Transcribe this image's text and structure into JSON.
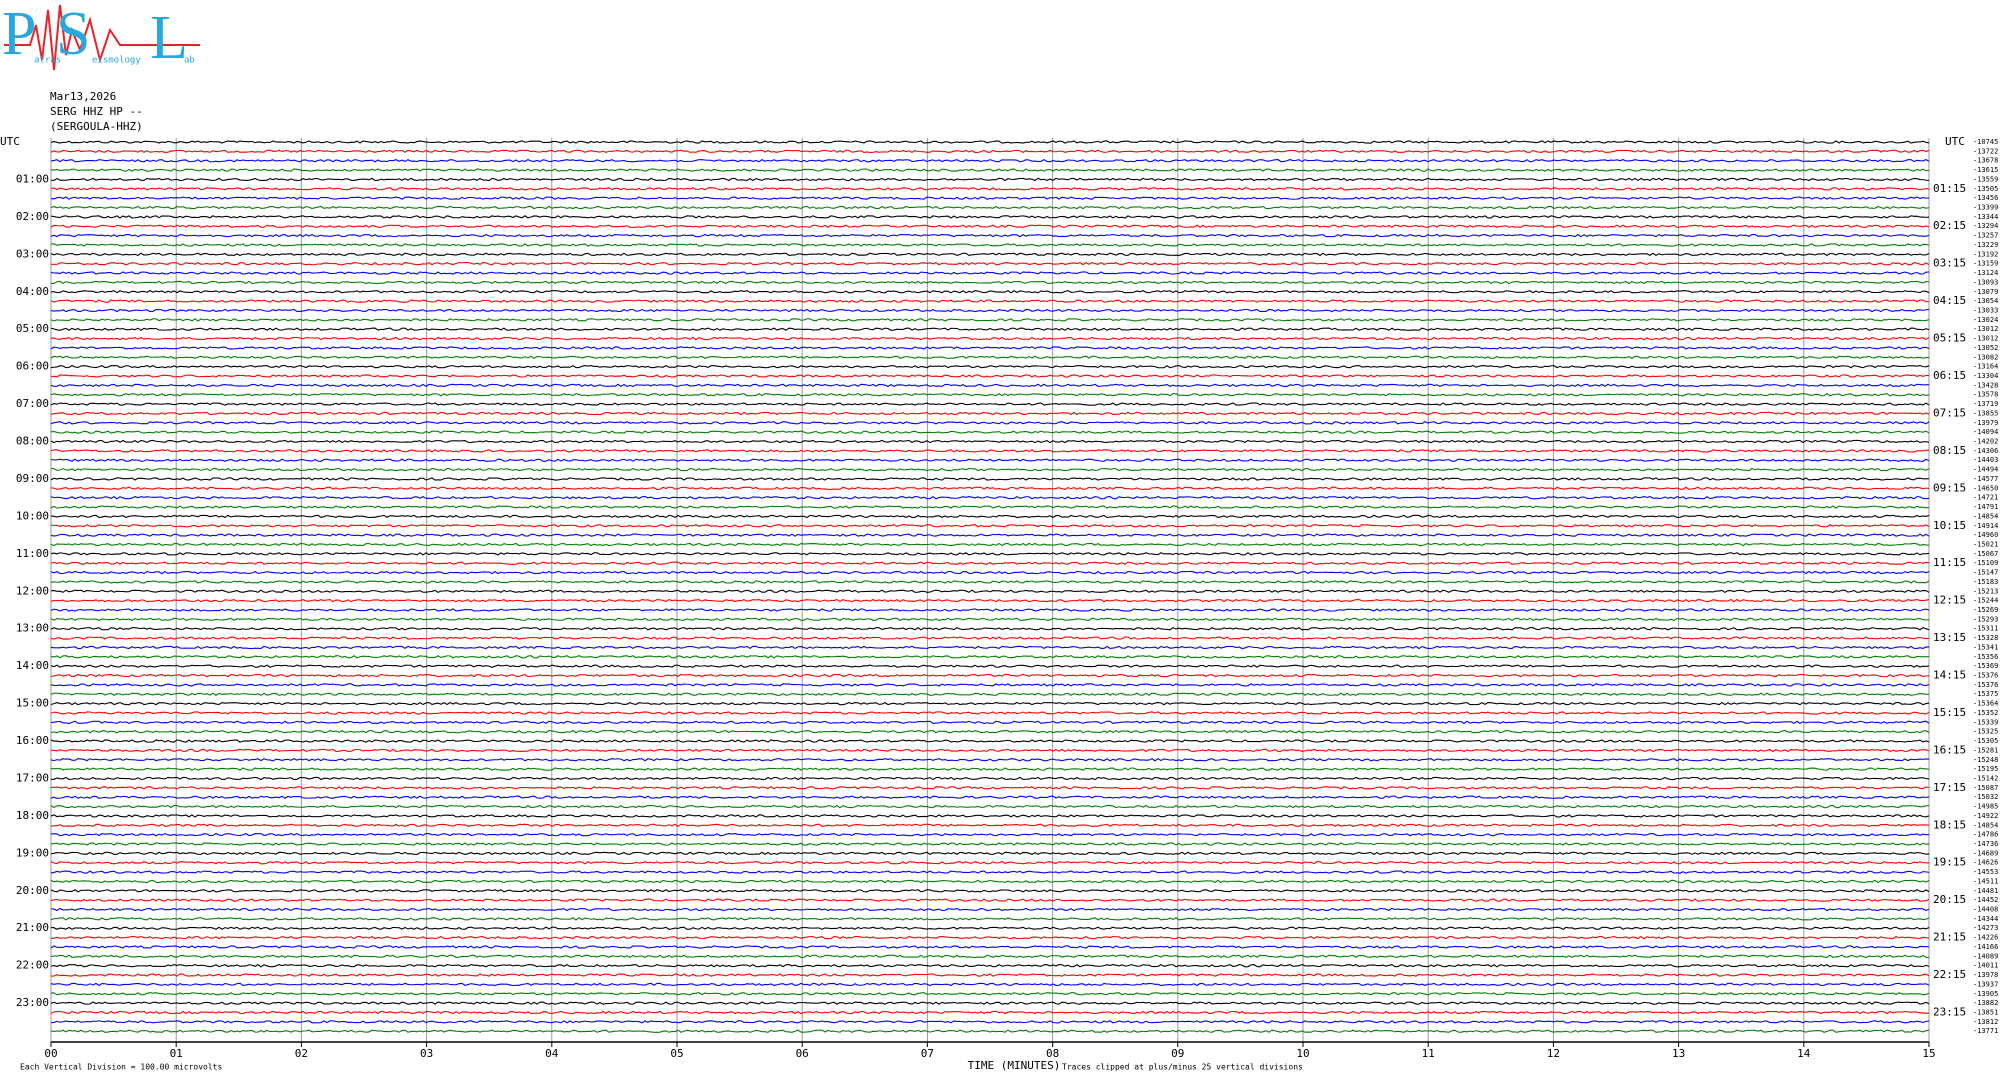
{
  "logo": {
    "letters": [
      "P",
      "S",
      "L"
    ],
    "words": [
      "atras",
      "eismology",
      "ab"
    ]
  },
  "chart_data": {
    "type": "helicorder",
    "title": "Mar13,2026",
    "subtitle": [
      "SERG HHZ HP --",
      "(SERGOULA-HHZ)"
    ],
    "x_label": "TIME (MINUTES)",
    "notes": [
      "Each Vertical Division =  100.00 microvolts",
      "Traces clipped at plus/minus 25 vertical divisions"
    ],
    "xlim": [
      0,
      15
    ],
    "xticks": [
      {
        "value": 0,
        "label": "00"
      },
      {
        "value": 1,
        "label": "01"
      },
      {
        "value": 2,
        "label": "02"
      },
      {
        "value": 3,
        "label": "03"
      },
      {
        "value": 4,
        "label": "04"
      },
      {
        "value": 5,
        "label": "05"
      },
      {
        "value": 6,
        "label": "06"
      },
      {
        "value": 7,
        "label": "07"
      },
      {
        "value": 8,
        "label": "08"
      },
      {
        "value": 9,
        "label": "09"
      },
      10,
      11,
      12,
      13,
      14,
      15
    ],
    "colors": [
      "#000000",
      "#ff0000",
      "#0000ff",
      "#008000"
    ],
    "left_labels": [
      "UTC",
      "01:00",
      "02:00",
      "03:00",
      "04:00",
      "05:00",
      "06:00",
      "07:00",
      "08:00",
      "09:00",
      "10:00",
      "11:00",
      "12:00",
      "13:00",
      "14:00",
      "15:00",
      "16:00",
      "17:00",
      "18:00",
      "19:00",
      "20:00",
      "21:00",
      "22:00",
      "23:00"
    ],
    "right_labels": [
      "UTC",
      "01:15",
      "02:15",
      "03:15",
      "04:15",
      "05:15",
      "06:15",
      "07:15",
      "08:15",
      "09:15",
      "10:15",
      "11:15",
      "12:15",
      "13:15",
      "14:15",
      "15:15",
      "16:15",
      "17:15",
      "18:15",
      "19:15",
      "20:15",
      "21:15",
      "22:15",
      "23:15"
    ],
    "trace_offsets": [
      -10745,
      -13722,
      -13678,
      -13615,
      -13559,
      -13505,
      -13456,
      -13399,
      -13344,
      -13294,
      -13257,
      -13229,
      -13192,
      -13159,
      -13124,
      -13093,
      -13079,
      -13054,
      -13033,
      -13024,
      -13012,
      -13012,
      -13052,
      -13082,
      -13164,
      -13304,
      -13428,
      -13578,
      -13719,
      -13855,
      -13979,
      -14094,
      -14202,
      -14306,
      -14403,
      -14494,
      -14577,
      -14650,
      -14721,
      -14791,
      -14854,
      -14914,
      -14960,
      -15021,
      -15067,
      -15109,
      -15147,
      -15183,
      -15213,
      -15244,
      -15269,
      -15293,
      -15311,
      -15328,
      -15341,
      -15356,
      -15369,
      -15376,
      -15376,
      -15375,
      -15364,
      -15352,
      -15339,
      -15325,
      -15305,
      -15281,
      -15248,
      -15195,
      -15142,
      -15087,
      -15032,
      -14985,
      -14922,
      -14854,
      -14786,
      -14736,
      -14689,
      -14626,
      -14553,
      -14511,
      -14481,
      -14452,
      -14408,
      -14344,
      -14273,
      -14226,
      -14166,
      -14089,
      -14011,
      -13978,
      -13937,
      -13905,
      -13882,
      -13851,
      -13812,
      -13771
    ]
  }
}
